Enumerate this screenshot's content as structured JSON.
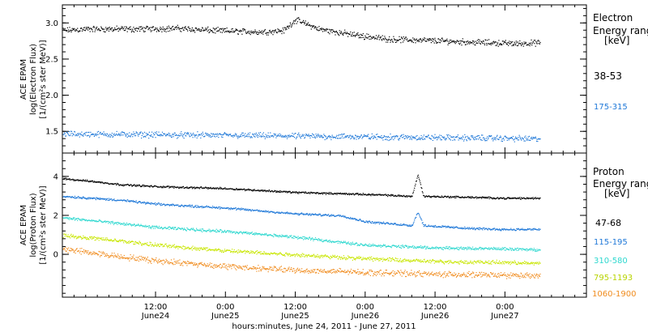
{
  "xaxis": {
    "title": "hours:minutes, June 24, 2011 - June 27, 2011",
    "range": [
      -4,
      86
    ],
    "ticks": [
      {
        "x": 12,
        "time": "12:00",
        "date": "June24"
      },
      {
        "x": 24,
        "time": "0:00",
        "date": "June25"
      },
      {
        "x": 36,
        "time": "12:00",
        "date": "June25"
      },
      {
        "x": 48,
        "time": "0:00",
        "date": "June26"
      },
      {
        "x": 60,
        "time": "12:00",
        "date": "June26"
      },
      {
        "x": 72,
        "time": "0:00",
        "date": "June27"
      }
    ]
  },
  "chart_data": [
    {
      "type": "scatter",
      "ylabel": [
        "ACE EPAM",
        "log(Electron Flux)",
        "[1/(cm²s ster MeV)]"
      ],
      "ylim": [
        1.2,
        3.25
      ],
      "yticks": [
        1.5,
        2.0,
        2.5,
        3.0
      ],
      "ytick_labels": [
        "1.5",
        "2.0",
        "2.5",
        "3.0"
      ],
      "legend": {
        "title": [
          "Electron",
          "Energy ranges",
          "[keV]"
        ],
        "placement": "right"
      },
      "series": [
        {
          "name": "38-53",
          "color": "#000000",
          "x": [
            -4,
            0,
            8,
            16,
            22,
            30,
            34,
            36,
            40,
            46,
            52,
            60,
            66,
            74,
            78
          ],
          "y": [
            2.9,
            2.92,
            2.92,
            2.93,
            2.9,
            2.88,
            2.9,
            3.05,
            2.92,
            2.84,
            2.78,
            2.76,
            2.74,
            2.72,
            2.73
          ]
        },
        {
          "name": "175-315",
          "color": "#1f78d8",
          "x": [
            -4,
            10,
            24,
            36,
            48,
            60,
            72,
            78
          ],
          "y": [
            1.47,
            1.46,
            1.45,
            1.44,
            1.43,
            1.42,
            1.41,
            1.4
          ]
        }
      ]
    },
    {
      "type": "scatter",
      "ylabel": [
        "ACE EPAM",
        "log(Proton Flux)",
        "[1/(cm²s ster MeV)]"
      ],
      "ylim": [
        -2.2,
        5.2
      ],
      "yticks": [
        0,
        2,
        4
      ],
      "ytick_labels": [
        "0",
        "2",
        "4"
      ],
      "legend": {
        "title": [
          "Proton",
          "Energy ranges",
          "[keV]"
        ],
        "placement": "right"
      },
      "series": [
        {
          "name": "47-68",
          "color": "#000000",
          "x": [
            -4,
            0,
            6,
            12,
            24,
            36,
            48,
            56,
            57,
            58,
            66,
            72,
            78
          ],
          "y": [
            3.9,
            3.8,
            3.6,
            3.5,
            3.4,
            3.2,
            3.1,
            3.0,
            4.1,
            3.0,
            2.95,
            2.9,
            2.9
          ]
        },
        {
          "name": "115-195",
          "color": "#1f78d8",
          "x": [
            -4,
            6,
            12,
            24,
            36,
            44,
            48,
            56,
            57,
            58,
            66,
            72,
            78
          ],
          "y": [
            3.0,
            2.8,
            2.6,
            2.4,
            2.1,
            2.0,
            1.7,
            1.5,
            2.2,
            1.5,
            1.35,
            1.3,
            1.3
          ]
        },
        {
          "name": "310-580",
          "color": "#2ed8cf",
          "x": [
            -4,
            6,
            12,
            24,
            36,
            48,
            60,
            72,
            78
          ],
          "y": [
            1.9,
            1.6,
            1.4,
            1.2,
            0.9,
            0.5,
            0.35,
            0.3,
            0.25
          ]
        },
        {
          "name": "795-1193",
          "color": "#c8e600",
          "x": [
            -4,
            6,
            12,
            24,
            36,
            48,
            60,
            72,
            78
          ],
          "y": [
            1.0,
            0.7,
            0.5,
            0.2,
            0.0,
            -0.2,
            -0.35,
            -0.4,
            -0.45
          ]
        },
        {
          "name": "1060-1900",
          "color": "#f08c1e",
          "x": [
            -4,
            6,
            12,
            24,
            36,
            48,
            60,
            72,
            78
          ],
          "y": [
            0.3,
            -0.1,
            -0.3,
            -0.6,
            -0.8,
            -0.9,
            -1.0,
            -1.05,
            -1.1
          ]
        }
      ]
    }
  ]
}
